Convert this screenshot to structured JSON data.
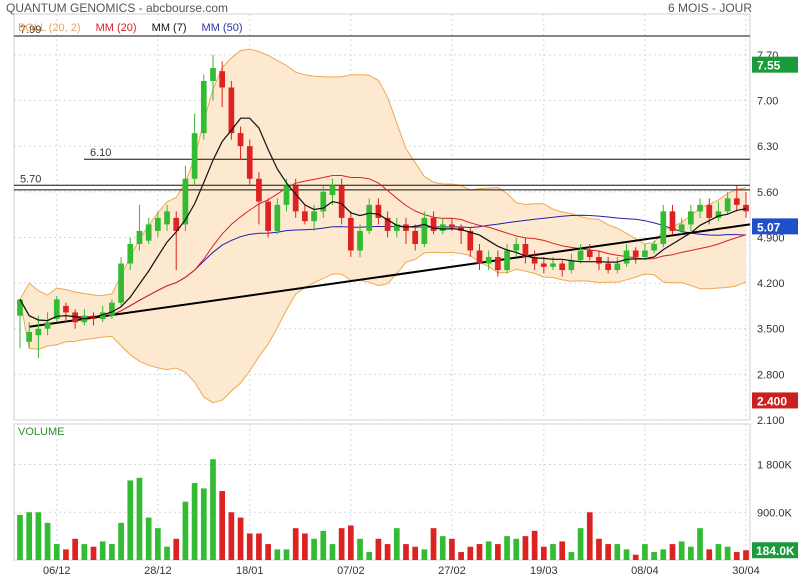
{
  "header": {
    "title": "QUANTUM GENOMICS - abcbourse.com",
    "period": "6 MOIS - JOUR"
  },
  "legend": [
    {
      "label": "BOLL (20, 2)",
      "color": "#e8a65a"
    },
    {
      "label": "MM (20)",
      "color": "#dd2222"
    },
    {
      "label": "MM (7)",
      "color": "#111111"
    },
    {
      "label": "MM (50)",
      "color": "#3333aa"
    }
  ],
  "volume_label": "VOLUME",
  "colors": {
    "up": "#33bb33",
    "down": "#dd2222",
    "band_fill": "#fde8d0",
    "band_line": "#f0a850",
    "ma20": "#dd2222",
    "ma7": "#111111",
    "ma50": "#2222aa",
    "grid": "#cfd8e6",
    "badge_green": "#1a9a3a",
    "badge_red": "#cc2020",
    "badge_blue": "#2050c8"
  },
  "chart_data": [
    {
      "type": "line",
      "title": "QUANTUM GENOMICS",
      "subtitle": "6 MOIS - JOUR",
      "x": [
        "06/12",
        "28/12",
        "18/01",
        "07/02",
        "27/02",
        "19/03",
        "08/04",
        "30/04"
      ],
      "ylim": [
        2.1,
        7.99
      ],
      "y_ticks": [
        "2.100",
        "2.800",
        "3.500",
        "4.200",
        "4.900",
        "5.60",
        "6.30",
        "7.00",
        "7.70"
      ],
      "price_levels": [
        {
          "label": "7.99",
          "value": 7.99
        },
        {
          "label": "6.10",
          "value": 6.1
        },
        {
          "label": "5.70",
          "value": 5.7
        },
        {
          "label": "",
          "value": 5.63
        }
      ],
      "badges": [
        {
          "label": "7.55",
          "value": 7.55,
          "kind": "green"
        },
        {
          "label": "5.07",
          "value": 5.07,
          "kind": "blue"
        },
        {
          "label": "2.400",
          "value": 2.4,
          "kind": "red"
        }
      ],
      "trendline": {
        "start": [
          1,
          3.53
        ],
        "end": [
          80,
          5.07
        ]
      },
      "candles": [
        [
          3.7,
          3.95,
          3.95,
          3.2
        ],
        [
          3.3,
          3.45,
          3.6,
          3.2
        ],
        [
          3.4,
          3.5,
          3.7,
          3.05
        ],
        [
          3.5,
          3.6,
          3.75,
          3.4
        ],
        [
          3.65,
          3.95,
          4.0,
          3.6
        ],
        [
          3.85,
          3.75,
          3.9,
          3.6
        ],
        [
          3.75,
          3.6,
          3.8,
          3.5
        ],
        [
          3.6,
          3.7,
          3.8,
          3.55
        ],
        [
          3.7,
          3.65,
          3.75,
          3.55
        ],
        [
          3.65,
          3.75,
          3.85,
          3.6
        ],
        [
          3.7,
          3.9,
          3.95,
          3.65
        ],
        [
          3.9,
          4.5,
          4.6,
          3.85
        ],
        [
          4.5,
          4.8,
          4.9,
          4.4
        ],
        [
          4.8,
          5.0,
          5.4,
          4.7
        ],
        [
          4.85,
          5.1,
          5.2,
          4.8
        ],
        [
          5.0,
          5.2,
          5.3,
          4.9
        ],
        [
          5.1,
          5.3,
          5.4,
          5.0
        ],
        [
          5.2,
          5.0,
          5.3,
          4.4
        ],
        [
          5.1,
          5.8,
          6.0,
          5.0
        ],
        [
          5.8,
          6.5,
          6.8,
          5.7
        ],
        [
          6.5,
          7.3,
          7.4,
          6.4
        ],
        [
          7.3,
          7.5,
          7.7,
          7.0
        ],
        [
          7.45,
          7.2,
          7.6,
          6.9
        ],
        [
          7.2,
          6.5,
          7.3,
          6.4
        ],
        [
          6.5,
          6.3,
          6.6,
          6.1
        ],
        [
          6.3,
          5.8,
          6.4,
          5.7
        ],
        [
          5.8,
          5.45,
          5.9,
          5.1
        ],
        [
          5.45,
          5.0,
          5.5,
          4.9
        ],
        [
          5.0,
          5.4,
          5.5,
          4.95
        ],
        [
          5.4,
          5.7,
          5.8,
          5.3
        ],
        [
          5.7,
          5.3,
          5.8,
          5.2
        ],
        [
          5.3,
          5.15,
          5.4,
          5.1
        ],
        [
          5.15,
          5.3,
          5.4,
          5.0
        ],
        [
          5.3,
          5.6,
          5.7,
          5.2
        ],
        [
          5.55,
          5.7,
          5.8,
          5.4
        ],
        [
          5.7,
          5.2,
          5.8,
          5.1
        ],
        [
          5.2,
          4.7,
          5.3,
          4.6
        ],
        [
          4.7,
          5.0,
          5.1,
          4.6
        ],
        [
          5.0,
          5.4,
          5.5,
          4.95
        ],
        [
          5.4,
          5.2,
          5.5,
          5.1
        ],
        [
          5.2,
          5.0,
          5.3,
          4.9
        ],
        [
          5.0,
          5.1,
          5.2,
          4.9
        ],
        [
          5.1,
          5.0,
          5.2,
          4.8
        ],
        [
          5.0,
          4.8,
          5.1,
          4.7
        ],
        [
          4.8,
          5.2,
          5.3,
          4.75
        ],
        [
          5.2,
          5.0,
          5.3,
          4.95
        ],
        [
          5.0,
          5.1,
          5.2,
          4.95
        ],
        [
          5.1,
          5.05,
          5.2,
          5.0
        ],
        [
          5.05,
          5.0,
          5.1,
          4.8
        ],
        [
          5.0,
          4.7,
          5.05,
          4.6
        ],
        [
          4.7,
          4.5,
          4.8,
          4.4
        ],
        [
          4.5,
          4.6,
          4.7,
          4.4
        ],
        [
          4.6,
          4.4,
          4.7,
          4.3
        ],
        [
          4.4,
          4.7,
          4.8,
          4.35
        ],
        [
          4.7,
          4.8,
          4.9,
          4.6
        ],
        [
          4.8,
          4.6,
          4.9,
          4.5
        ],
        [
          4.6,
          4.5,
          4.7,
          4.4
        ],
        [
          4.5,
          4.45,
          4.6,
          4.35
        ],
        [
          4.45,
          4.5,
          4.6,
          4.4
        ],
        [
          4.5,
          4.4,
          4.55,
          4.3
        ],
        [
          4.4,
          4.55,
          4.65,
          4.35
        ],
        [
          4.55,
          4.7,
          4.8,
          4.5
        ],
        [
          4.7,
          4.6,
          4.8,
          4.55
        ],
        [
          4.6,
          4.5,
          4.7,
          4.4
        ],
        [
          4.5,
          4.4,
          4.6,
          4.35
        ],
        [
          4.4,
          4.5,
          4.6,
          4.35
        ],
        [
          4.5,
          4.7,
          4.8,
          4.45
        ],
        [
          4.7,
          4.6,
          4.75,
          4.5
        ],
        [
          4.6,
          4.7,
          4.8,
          4.55
        ],
        [
          4.7,
          4.8,
          4.85,
          4.65
        ],
        [
          4.8,
          5.3,
          5.4,
          4.75
        ],
        [
          5.3,
          5.0,
          5.4,
          4.95
        ],
        [
          5.0,
          5.1,
          5.2,
          4.95
        ],
        [
          5.1,
          5.3,
          5.4,
          5.0
        ],
        [
          5.3,
          5.4,
          5.5,
          5.2
        ],
        [
          5.4,
          5.2,
          5.5,
          5.1
        ],
        [
          5.2,
          5.3,
          5.45,
          5.15
        ],
        [
          5.3,
          5.5,
          5.6,
          5.25
        ],
        [
          5.5,
          5.4,
          5.7,
          5.3
        ],
        [
          5.4,
          5.3,
          5.6,
          5.2
        ]
      ]
    },
    {
      "type": "bar",
      "title": "VOLUME",
      "ylim": [
        0,
        2300000
      ],
      "y_ticks": [
        "900.0K",
        "1 800K"
      ],
      "badge": {
        "label": "184.0K",
        "value": 184000
      },
      "values": [
        850000,
        900000,
        900000,
        700000,
        300000,
        200000,
        400000,
        300000,
        250000,
        350000,
        300000,
        700000,
        1500000,
        1550000,
        800000,
        600000,
        250000,
        400000,
        1100000,
        1450000,
        1350000,
        1900000,
        1300000,
        900000,
        800000,
        500000,
        500000,
        300000,
        200000,
        200000,
        600000,
        500000,
        400000,
        550000,
        300000,
        600000,
        650000,
        400000,
        150000,
        400000,
        300000,
        600000,
        300000,
        250000,
        200000,
        600000,
        450000,
        400000,
        150000,
        250000,
        300000,
        350000,
        300000,
        450000,
        400000,
        450000,
        550000,
        250000,
        300000,
        350000,
        150000,
        600000,
        900000,
        400000,
        300000,
        300000,
        200000,
        100000,
        300000,
        150000,
        200000,
        300000,
        350000,
        250000,
        600000,
        200000,
        300000,
        250000,
        150000,
        184000
      ]
    }
  ]
}
